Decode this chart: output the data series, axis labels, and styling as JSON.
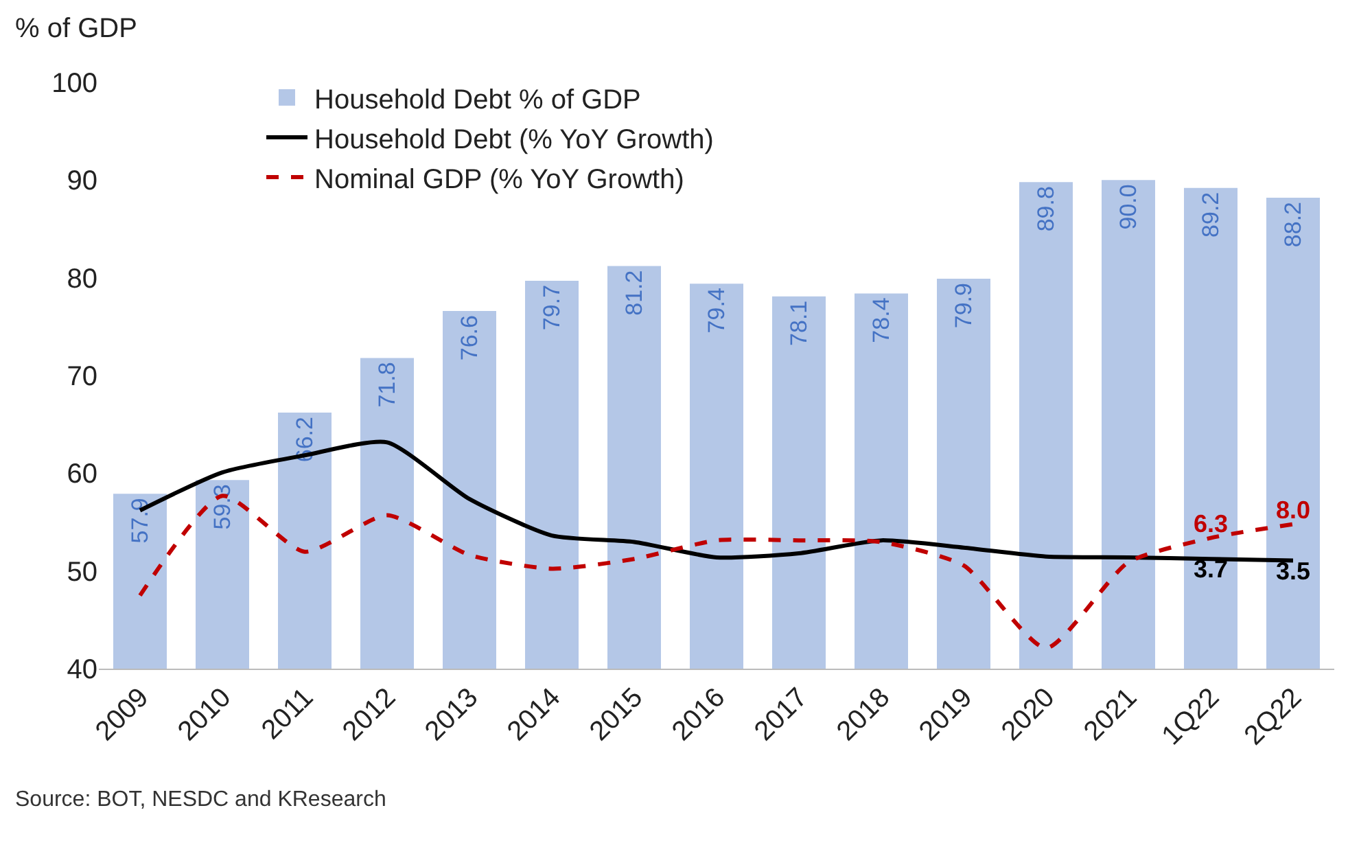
{
  "chart_data": {
    "type": "bar",
    "ylabel": "% of GDP",
    "categories": [
      "2009",
      "2010",
      "2011",
      "2012",
      "2013",
      "2014",
      "2015",
      "2016",
      "2017",
      "2018",
      "2019",
      "2020",
      "2021",
      "1Q22",
      "2Q22"
    ],
    "series": [
      {
        "name": "Household Debt % of GDP",
        "color": "#b4c7e7",
        "values": [
          57.9,
          59.3,
          66.2,
          71.8,
          76.6,
          79.7,
          81.2,
          79.4,
          78.1,
          78.4,
          79.9,
          89.8,
          90.0,
          89.2,
          88.2
        ],
        "value_labels": [
          "57.9",
          "59.3",
          "66.2",
          "71.8",
          "76.6",
          "79.7",
          "81.2",
          "79.4",
          "78.1",
          "78.4",
          "79.9",
          "89.8",
          "90.0",
          "89.2",
          "88.2"
        ]
      },
      {
        "name": "Household Debt (% YoY Growth)",
        "type": "line",
        "axis": "y2",
        "color": "#000000",
        "line_style": "solid",
        "values": [
          9.7,
          14.4,
          16.5,
          18.1,
          11.1,
          6.6,
          5.8,
          3.9,
          4.4,
          6.0,
          5.1,
          4.0,
          3.9,
          3.7,
          3.5
        ],
        "value_labels": [
          null,
          null,
          null,
          null,
          null,
          null,
          null,
          null,
          null,
          null,
          null,
          null,
          null,
          "3.7",
          "3.5"
        ]
      },
      {
        "name": "Nominal GDP (% YoY Growth)",
        "type": "line",
        "axis": "y2",
        "color": "#c00000",
        "line_style": "dashed",
        "values": [
          -0.8,
          11.5,
          4.6,
          9.1,
          4.2,
          2.5,
          3.7,
          6.0,
          6.0,
          5.8,
          2.9,
          -7.3,
          3.3,
          6.3,
          8.0
        ],
        "value_labels": [
          null,
          null,
          null,
          null,
          null,
          null,
          null,
          null,
          null,
          null,
          null,
          null,
          null,
          "6.3",
          "8.0"
        ]
      }
    ],
    "ylim": [
      40,
      100
    ],
    "yticks": [
      40,
      50,
      60,
      70,
      80,
      90,
      100
    ],
    "legend": "top left",
    "grid": false,
    "annotations": [
      "Source: BOT, NESDC and KResearch"
    ]
  }
}
